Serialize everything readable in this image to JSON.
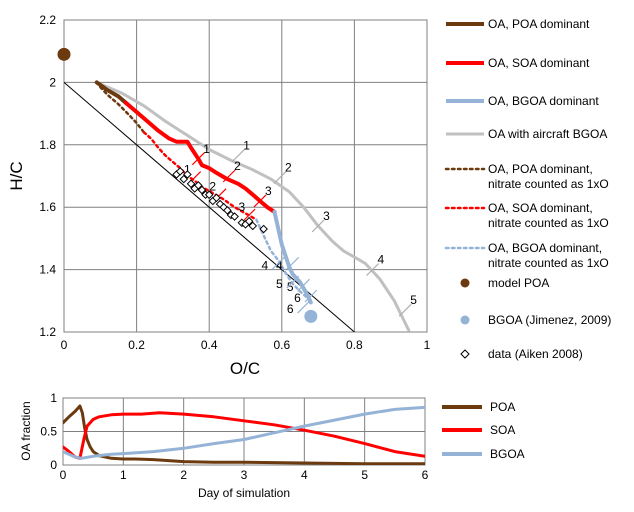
{
  "chart_data": [
    {
      "type": "line",
      "xlabel": "O/C",
      "ylabel": "H/C",
      "xlim": [
        0,
        1
      ],
      "ylim": [
        1.2,
        2.2
      ],
      "x_ticks": [
        "0",
        "0.2",
        "0.4",
        "0.6",
        "0.8",
        "1"
      ],
      "y_ticks": [
        "1.2",
        "1.4",
        "1.6",
        "1.8",
        "2",
        "2.2"
      ],
      "grid": true,
      "legend_position": "right",
      "colors": {
        "poa": "#6b3a0f",
        "soa": "#ff0000",
        "bgoa": "#95b3d7",
        "aircraft": "#c0c0c0",
        "data": "#000000"
      },
      "reference_line": {
        "x": [
          0,
          0.8
        ],
        "y": [
          2.0,
          1.2
        ]
      },
      "series": [
        {
          "key": "poa_dom",
          "name": "OA, POA dominant",
          "x": [
            0.09,
            0.12,
            0.15,
            0.17
          ],
          "y": [
            2.0,
            1.975,
            1.955,
            1.935
          ]
        },
        {
          "key": "soa_dom",
          "name": "OA, SOA dominant",
          "x": [
            0.17,
            0.2,
            0.23,
            0.26,
            0.29,
            0.31,
            0.34,
            0.35,
            0.37,
            0.38,
            0.4,
            0.42,
            0.45,
            0.48,
            0.5,
            0.52,
            0.54,
            0.56,
            0.58
          ],
          "y": [
            1.935,
            1.905,
            1.875,
            1.845,
            1.82,
            1.81,
            1.81,
            1.79,
            1.755,
            1.735,
            1.725,
            1.71,
            1.69,
            1.675,
            1.66,
            1.64,
            1.62,
            1.6,
            1.585
          ]
        },
        {
          "key": "bgoa_dom",
          "name": "OA, BGOA dominant",
          "x": [
            0.58,
            0.6,
            0.62,
            0.63,
            0.65,
            0.66,
            0.67,
            0.68
          ],
          "y": [
            1.585,
            1.48,
            1.41,
            1.385,
            1.36,
            1.34,
            1.32,
            1.295
          ]
        },
        {
          "key": "aircraft",
          "name": "OA with aircraft BGOA",
          "x": [
            0.1,
            0.16,
            0.22,
            0.28,
            0.34,
            0.4,
            0.46,
            0.52,
            0.57,
            0.62,
            0.66,
            0.7,
            0.74,
            0.77,
            0.8,
            0.83,
            0.87,
            0.91,
            0.95
          ],
          "y": [
            1.995,
            1.965,
            1.925,
            1.875,
            1.83,
            1.785,
            1.75,
            1.72,
            1.69,
            1.65,
            1.6,
            1.54,
            1.49,
            1.46,
            1.44,
            1.42,
            1.37,
            1.3,
            1.205
          ]
        },
        {
          "key": "poa_nit",
          "name": "OA, POA dominant, nitrate counted as 1xO",
          "x": [
            0.1,
            0.12,
            0.15,
            0.18,
            0.2,
            0.22
          ],
          "y": [
            1.985,
            1.96,
            1.93,
            1.895,
            1.87,
            1.84
          ]
        },
        {
          "key": "soa_nit",
          "name": "OA, SOA dominant, nitrate counted as 1xO",
          "x": [
            0.22,
            0.24,
            0.26,
            0.28,
            0.3,
            0.32,
            0.34,
            0.36,
            0.38,
            0.41,
            0.44,
            0.47,
            0.5,
            0.53
          ],
          "y": [
            1.84,
            1.82,
            1.79,
            1.765,
            1.745,
            1.725,
            1.7,
            1.685,
            1.665,
            1.645,
            1.625,
            1.6,
            1.58,
            1.56
          ]
        },
        {
          "key": "bgoa_nit",
          "name": "OA, BGOA dominant, nitrate counted as 1xO",
          "x": [
            0.53,
            0.55,
            0.57,
            0.59,
            0.61,
            0.63,
            0.65,
            0.67
          ],
          "y": [
            1.56,
            1.51,
            1.46,
            1.43,
            1.39,
            1.355,
            1.33,
            1.31
          ]
        }
      ],
      "day_markers": [
        {
          "series": "soa_dom",
          "labels": [
            "1",
            "2",
            "3"
          ],
          "x": [
            0.37,
            0.455,
            0.54
          ],
          "y": [
            1.755,
            1.7,
            1.62
          ]
        },
        {
          "series": "aircraft",
          "labels": [
            "1",
            "2",
            "3",
            "4",
            "5"
          ],
          "x": [
            0.48,
            0.595,
            0.7,
            0.85,
            0.94
          ],
          "y": [
            1.765,
            1.695,
            1.54,
            1.4,
            1.27
          ]
        },
        {
          "series": "soa_nit",
          "labels": [
            "1",
            "2",
            "3"
          ],
          "x": [
            0.36,
            0.43,
            0.51
          ],
          "y": [
            1.695,
            1.64,
            1.575
          ]
        },
        {
          "series": "bgoa",
          "labels": [
            "4",
            "5",
            "6"
          ],
          "x": [
            0.63,
            0.66,
            0.68
          ],
          "y": [
            1.42,
            1.35,
            1.315
          ]
        },
        {
          "series": "bgoa_nit",
          "labels": [
            "4",
            "5",
            "6"
          ],
          "x": [
            0.59,
            0.63,
            0.66
          ],
          "y": [
            1.42,
            1.36,
            1.28
          ]
        }
      ],
      "model_poa": {
        "name": "model POA",
        "x": 0,
        "y": 2.09
      },
      "bgoa_jimenez": {
        "name": "BGOA (Jimenez, 2009)",
        "x": 0.68,
        "y": 1.25
      },
      "aiken_data": {
        "name": "data (Aiken 2008)",
        "x": [
          0.31,
          0.32,
          0.33,
          0.34,
          0.35,
          0.36,
          0.37,
          0.38,
          0.39,
          0.4,
          0.41,
          0.42,
          0.43,
          0.44,
          0.45,
          0.46,
          0.47,
          0.49,
          0.5,
          0.51,
          0.52,
          0.55
        ],
        "y": [
          1.705,
          1.715,
          1.69,
          1.705,
          1.675,
          1.66,
          1.67,
          1.655,
          1.64,
          1.64,
          1.62,
          1.63,
          1.61,
          1.6,
          1.59,
          1.575,
          1.57,
          1.55,
          1.545,
          1.555,
          1.54,
          1.53
        ]
      }
    },
    {
      "type": "line",
      "xlabel": "Day of simulation",
      "ylabel": "OA fraction",
      "xlim": [
        0,
        6
      ],
      "ylim": [
        0,
        1
      ],
      "x_ticks": [
        "0",
        "1",
        "2",
        "3",
        "4",
        "5",
        "6"
      ],
      "y_ticks": [
        "0",
        "0.5",
        "1"
      ],
      "grid": true,
      "legend_position": "right",
      "series": [
        {
          "key": "poa",
          "name": "POA",
          "color": "#6b3a0f",
          "x": [
            0,
            0.1,
            0.2,
            0.28,
            0.32,
            0.36,
            0.4,
            0.45,
            0.5,
            0.6,
            0.8,
            1.0,
            1.2,
            1.5,
            2.0,
            2.5,
            3.0,
            4.0,
            5.0,
            6.0
          ],
          "y": [
            0.63,
            0.72,
            0.8,
            0.88,
            0.78,
            0.55,
            0.38,
            0.27,
            0.2,
            0.14,
            0.1,
            0.09,
            0.09,
            0.08,
            0.05,
            0.04,
            0.04,
            0.03,
            0.02,
            0.02
          ]
        },
        {
          "key": "soa",
          "name": "SOA",
          "color": "#ff0000",
          "x": [
            0,
            0.1,
            0.2,
            0.28,
            0.35,
            0.4,
            0.5,
            0.6,
            0.8,
            1.0,
            1.3,
            1.6,
            2.0,
            2.5,
            3.0,
            3.5,
            4.0,
            4.5,
            5.0,
            5.5,
            6.0
          ],
          "y": [
            0.27,
            0.2,
            0.12,
            0.1,
            0.4,
            0.58,
            0.68,
            0.72,
            0.75,
            0.76,
            0.76,
            0.78,
            0.76,
            0.72,
            0.66,
            0.6,
            0.52,
            0.43,
            0.32,
            0.2,
            0.13
          ]
        },
        {
          "key": "bgoa",
          "name": "BGOA",
          "color": "#95b3d7",
          "x": [
            0,
            0.2,
            0.3,
            0.5,
            0.8,
            1.0,
            1.5,
            2.0,
            2.5,
            3.0,
            3.5,
            4.0,
            4.5,
            5.0,
            5.5,
            6.0
          ],
          "y": [
            0.2,
            0.12,
            0.1,
            0.13,
            0.16,
            0.17,
            0.2,
            0.25,
            0.32,
            0.38,
            0.48,
            0.58,
            0.67,
            0.76,
            0.83,
            0.86
          ]
        }
      ]
    }
  ]
}
